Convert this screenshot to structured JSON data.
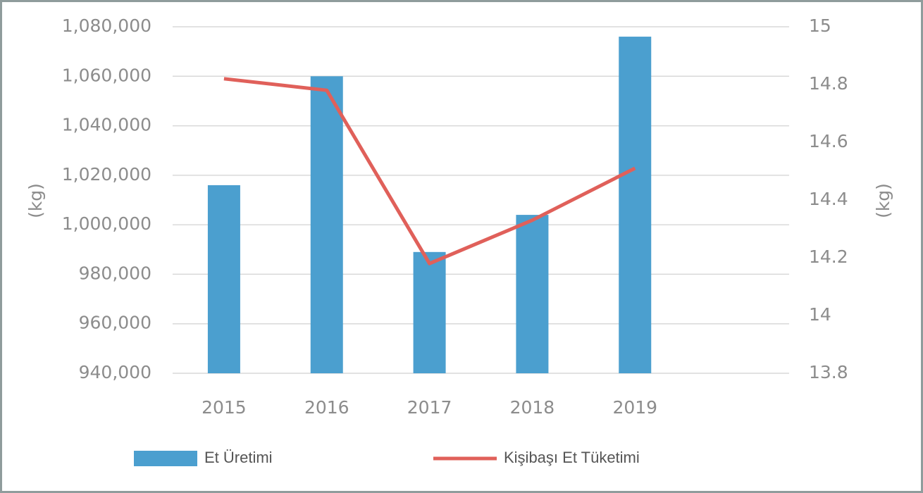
{
  "chart_data": {
    "type": "bar",
    "categories": [
      "2015",
      "2016",
      "2017",
      "2018",
      "2019"
    ],
    "series": [
      {
        "name": "Et Üretimi",
        "type": "bar",
        "color": "#4b9fcf",
        "axis": "y",
        "values": [
          1016000,
          1060000,
          989000,
          1004000,
          1076000
        ]
      },
      {
        "name": "Kişibaşı Et Tüketimi",
        "type": "line",
        "color": "#e0605a",
        "axis": "y2",
        "values": [
          14.82,
          14.78,
          14.18,
          14.33,
          14.51
        ]
      }
    ],
    "ylabel": "(kg)",
    "y2label": "(kg)",
    "ylim": [
      940000,
      1080000
    ],
    "yticks": [
      {
        "value": 940000,
        "label": "940,000"
      },
      {
        "value": 960000,
        "label": "960,000"
      },
      {
        "value": 980000,
        "label": "980,000"
      },
      {
        "value": 1000000,
        "label": "1,000,000"
      },
      {
        "value": 1020000,
        "label": "1,020,000"
      },
      {
        "value": 1040000,
        "label": "1,040,000"
      },
      {
        "value": 1060000,
        "label": "1,060,000"
      },
      {
        "value": 1080000,
        "label": "1,080,000"
      }
    ],
    "y2lim": [
      13.8,
      15
    ],
    "y2ticks": [
      13.8,
      14,
      14.2,
      14.4,
      14.6,
      14.8,
      15
    ],
    "grid": true,
    "legend": "bottom"
  }
}
